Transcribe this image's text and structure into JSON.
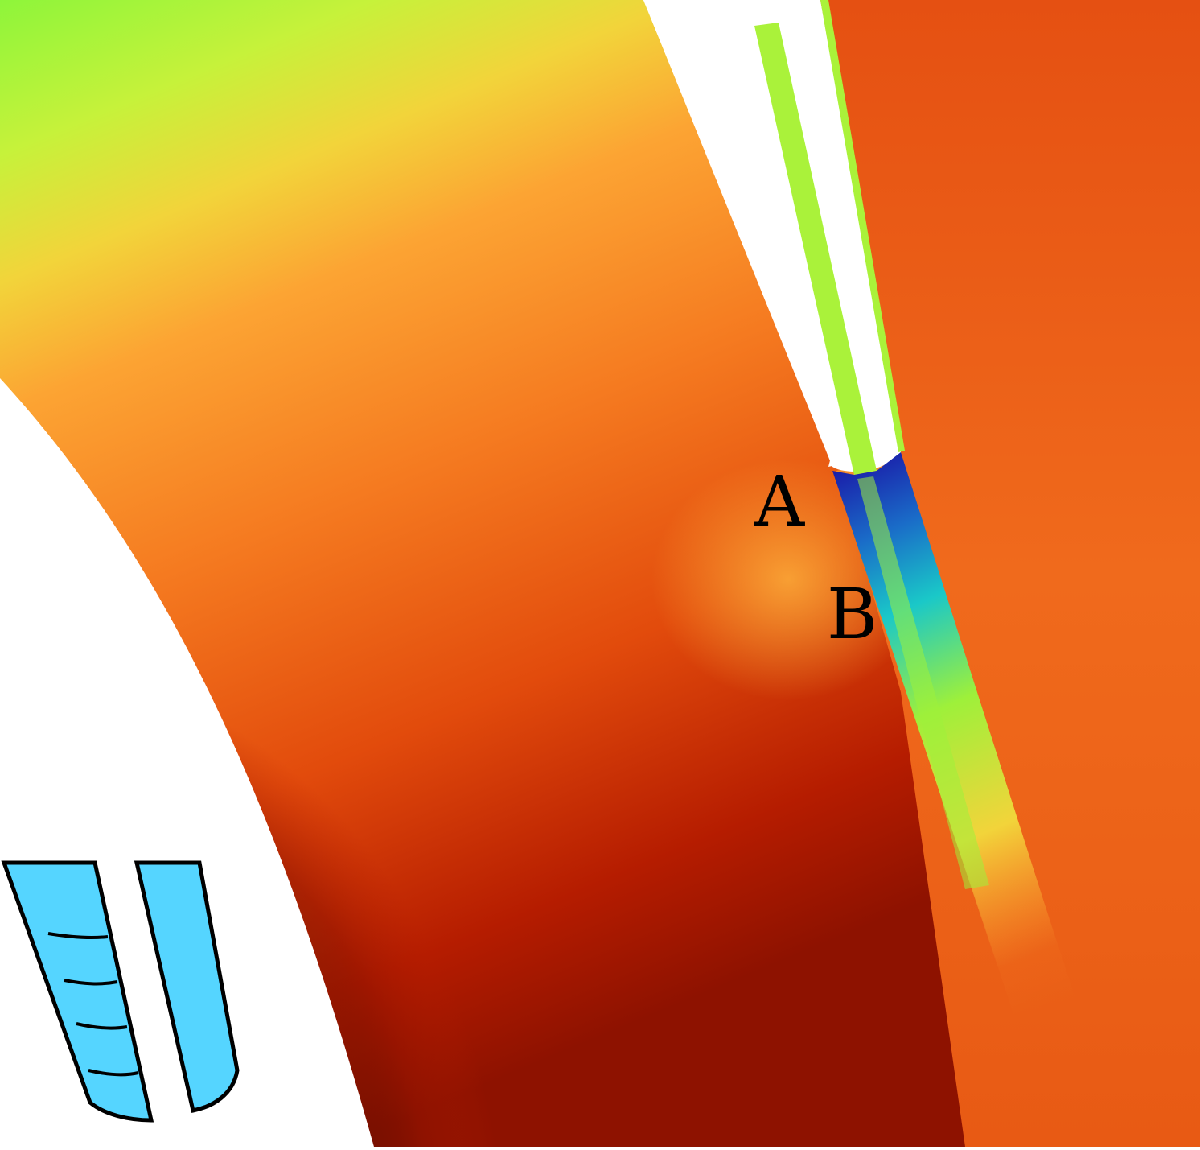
{
  "labels": {
    "a": "A",
    "b": "B"
  },
  "colors": {
    "background": "#ffffff",
    "field_green": "#8ef53a",
    "field_yellow_green": "#c6f23a",
    "field_yellow": "#f2d43a",
    "field_light_orange": "#fca433",
    "field_orange": "#f2661a",
    "field_deep_orange": "#e24b0c",
    "field_red": "#b51c00",
    "field_dark_red": "#8e1200",
    "wake_blue": "#1a1aa8",
    "wake_cyan": "#1ac8c8",
    "wake_green": "#9ef03a",
    "slat_green": "#aaf23a",
    "inset_fill": "#55d5ff",
    "inset_stroke": "#000000"
  }
}
